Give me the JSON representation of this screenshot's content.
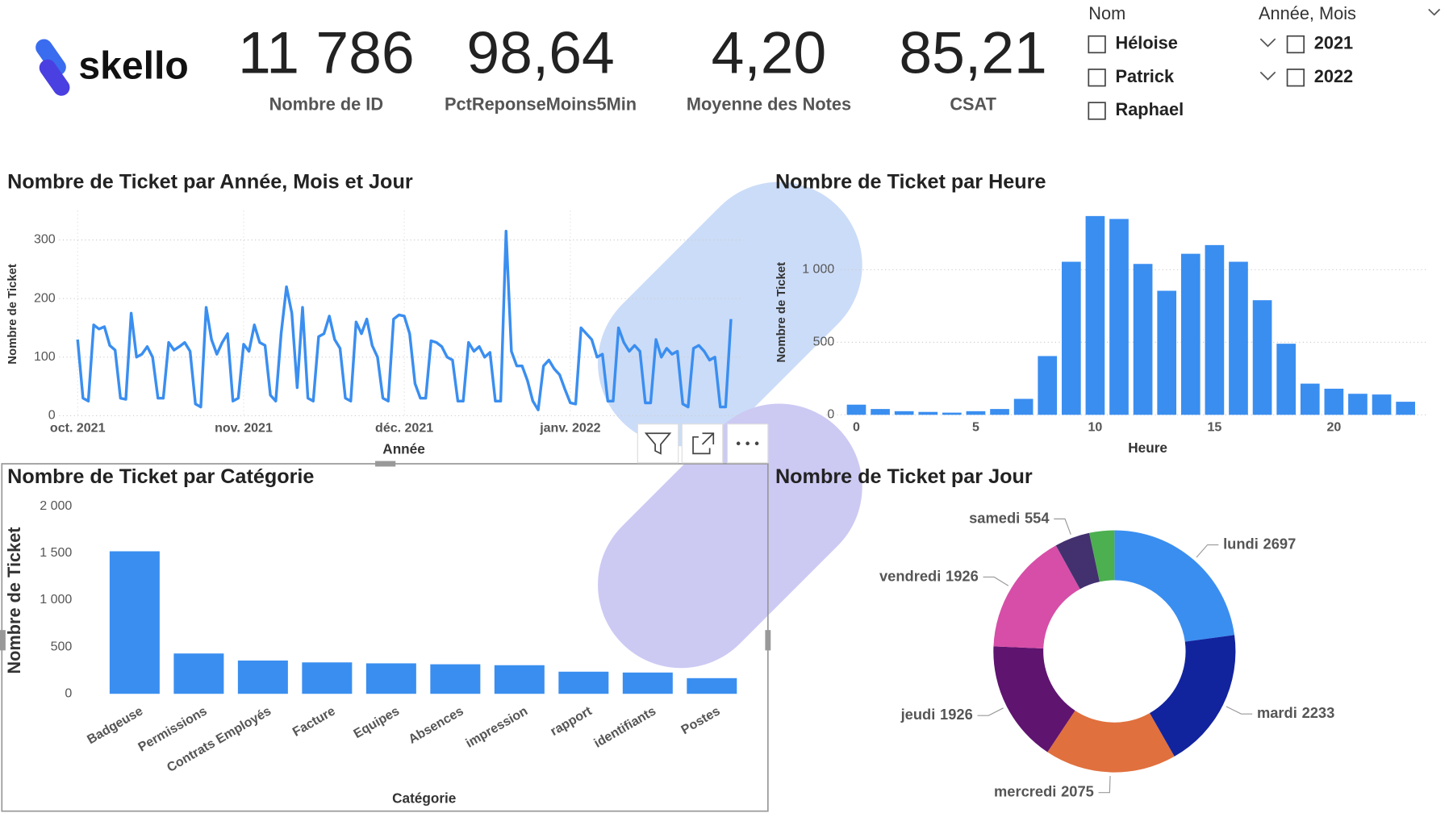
{
  "logo": "skello",
  "kpis": [
    {
      "value": "11 786",
      "label": "Nombre de ID"
    },
    {
      "value": "98,64",
      "label": "PctReponseMoins5Min"
    },
    {
      "value": "4,20",
      "label": "Moyenne des Notes"
    },
    {
      "value": "85,21",
      "label": "CSAT"
    }
  ],
  "slicers": [
    {
      "title": "Nom",
      "items": [
        "Héloise",
        "Patrick",
        "Raphael"
      ]
    },
    {
      "title": "Année, Mois",
      "items": [
        "2021",
        "2022"
      ]
    }
  ],
  "chart_data": [
    {
      "type": "line",
      "title": "Nombre de Ticket par Année, Mois et Jour",
      "x_label": "Année",
      "y_label": "Nombre de Ticket",
      "color": "#3a8ef0",
      "categories": [
        "oct. 2021",
        null,
        null,
        null,
        null,
        null,
        null,
        null,
        null,
        null,
        null,
        null,
        null,
        null,
        null,
        null,
        null,
        null,
        null,
        null,
        null,
        null,
        null,
        null,
        null,
        null,
        null,
        null,
        null,
        null,
        null,
        "nov. 2021",
        null,
        null,
        null,
        null,
        null,
        null,
        null,
        null,
        null,
        null,
        null,
        null,
        null,
        null,
        null,
        null,
        null,
        null,
        null,
        null,
        null,
        null,
        null,
        null,
        null,
        null,
        null,
        null,
        null,
        "déc. 2021",
        null,
        null,
        null,
        null,
        null,
        null,
        null,
        null,
        null,
        null,
        null,
        null,
        null,
        null,
        null,
        null,
        null,
        null,
        null,
        null,
        null,
        null,
        null,
        null,
        null,
        null,
        null,
        null,
        null,
        null,
        "janv. 2022",
        null,
        null,
        null,
        null,
        null,
        null,
        null,
        null,
        null,
        null,
        null,
        null,
        null,
        null,
        null,
        null,
        null,
        null,
        null,
        null,
        null,
        null,
        null,
        null,
        null,
        null,
        null,
        null,
        null,
        null
      ],
      "values": [
        130,
        30,
        25,
        155,
        148,
        152,
        120,
        112,
        30,
        28,
        175,
        100,
        105,
        118,
        100,
        30,
        30,
        125,
        112,
        118,
        125,
        110,
        20,
        15,
        185,
        130,
        105,
        125,
        140,
        25,
        30,
        122,
        110,
        155,
        125,
        120,
        35,
        25,
        140,
        220,
        175,
        48,
        185,
        30,
        25,
        135,
        140,
        170,
        130,
        115,
        30,
        25,
        160,
        140,
        165,
        120,
        100,
        30,
        25,
        165,
        172,
        170,
        140,
        55,
        30,
        30,
        128,
        125,
        118,
        100,
        95,
        25,
        25,
        125,
        110,
        118,
        100,
        108,
        25,
        25,
        315,
        110,
        85,
        85,
        60,
        25,
        10,
        85,
        95,
        80,
        70,
        45,
        22,
        20,
        150,
        140,
        130,
        100,
        105,
        25,
        25,
        150,
        125,
        110,
        120,
        110,
        22,
        22,
        130,
        100,
        115,
        105,
        110,
        20,
        15,
        115,
        120,
        110,
        95,
        100,
        15,
        15,
        165
      ],
      "ylim": [
        0,
        350
      ],
      "yticks": [
        0,
        100,
        200,
        300
      ],
      "grid": true
    },
    {
      "type": "bar",
      "title": "Nombre de Ticket par Heure",
      "x_label": "Heure",
      "y_label": "Nombre de Ticket",
      "color": "#3a8ef0",
      "x": [
        0,
        1,
        2,
        3,
        4,
        5,
        6,
        7,
        8,
        9,
        10,
        11,
        12,
        13,
        14,
        15,
        16,
        17,
        18,
        19,
        20,
        21,
        22,
        23
      ],
      "values": [
        70,
        40,
        25,
        20,
        15,
        25,
        40,
        110,
        405,
        1055,
        1370,
        1350,
        1040,
        855,
        1110,
        1170,
        1055,
        790,
        490,
        215,
        180,
        145,
        140,
        90
      ],
      "xlim": [
        -0.5,
        23.5
      ],
      "xticks": [
        0,
        5,
        10,
        15,
        20
      ],
      "ylim": [
        0,
        1420
      ],
      "yticks": [
        0,
        500,
        {
          "value": 1000,
          "label": "1 000"
        }
      ],
      "grid": true
    },
    {
      "type": "bar",
      "title": "Nombre de Ticket par Catégorie",
      "x_label": "Catégorie",
      "y_label": "Nombre de Ticket",
      "color": "#3a8ef0",
      "categories": [
        "Badgeuse",
        "Permissions",
        "Contrats Employés",
        "Facture",
        "Equipes",
        "Absences",
        "impression",
        "rapport",
        "identifiants",
        "Postes"
      ],
      "values": [
        1520,
        430,
        355,
        335,
        325,
        315,
        305,
        236,
        227,
        167
      ],
      "ylim": [
        0,
        2000
      ],
      "yticks": [
        0,
        500,
        {
          "value": 1000,
          "label": "1 000"
        },
        {
          "value": 1500,
          "label": "1 500"
        },
        {
          "value": 2000,
          "label": "2 000"
        }
      ],
      "grid": false
    },
    {
      "type": "pie",
      "title": "Nombre de Ticket par Jour",
      "donut": true,
      "categories": [
        "lundi",
        "mardi",
        "mercredi",
        "jeudi",
        "vendredi",
        "samedi",
        null
      ],
      "values": [
        2697,
        2233,
        2075,
        1926,
        1926,
        554,
        395
      ],
      "colors": [
        "#3a8ef0",
        "#12239e",
        "#e0703e",
        "#5f1470",
        "#d64ea7",
        "#43306f",
        "#4caf50"
      ]
    }
  ]
}
